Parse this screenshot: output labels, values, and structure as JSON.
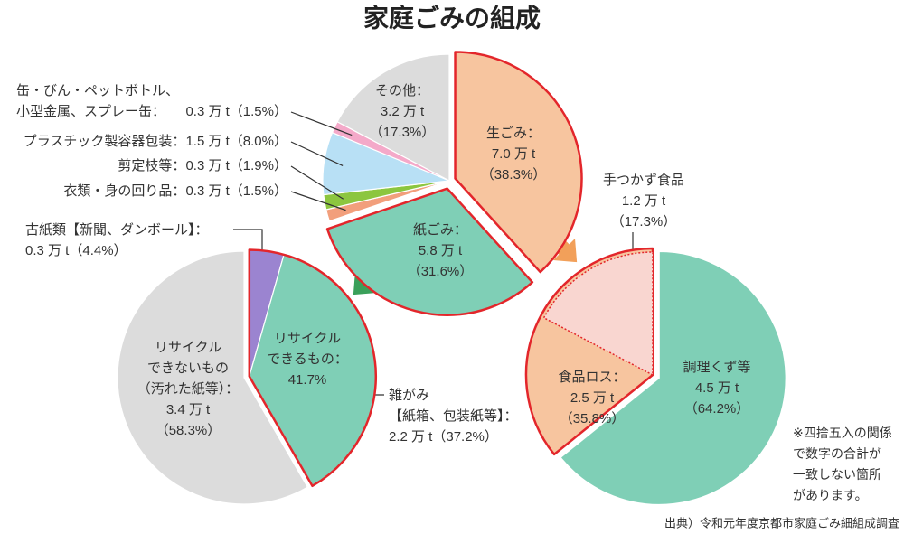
{
  "title": "家庭ごみの組成",
  "note": "※四捨五入の関係\nで数字の合計が\n一致しない箇所\nがあります。",
  "source": "出典）令和元年度京都市家庭ごみ細組成調査",
  "chart_data": [
    {
      "type": "pie",
      "categories": [
        "生ごみ：",
        "紙ごみ：",
        "衣類・身の回り品：",
        "剪定枝等：",
        "プラスチック製容器包装：",
        "缶・びん・ペットボトル、\n小型金属、スプレー缶：",
        "その他："
      ],
      "values": [
        38.3,
        31.6,
        1.5,
        1.9,
        8.0,
        1.5,
        17.3
      ],
      "value_labels": [
        "（38.3%）",
        "（31.6%）",
        "（1.5%）",
        "（1.9%）",
        "（8.0%）",
        "（1.5%）",
        "（17.3%）"
      ],
      "amounts": [
        "7.0 万 t",
        "5.8 万 t",
        "0.3 万 t",
        "0.3 万 t",
        "1.5 万 t",
        "0.3 万 t",
        "3.2 万 t"
      ],
      "colors": [
        "#f7c59f",
        "#7fcfb6",
        "#f29f7c",
        "#8cc63f",
        "#b8e0f5",
        "#f4a9c9",
        "#dcdcdc"
      ]
    },
    {
      "type": "pie",
      "categories": [
        "古紙類【新聞、ダンボール】：",
        "雑がみ\n【紙箱、包装紙等】：",
        "リサイクル\nできないもの\n（汚れた紙等）："
      ],
      "values": [
        4.4,
        37.2,
        58.3
      ],
      "value_labels": [
        "（4.4%）",
        "（37.2%）",
        "（58.3%）"
      ],
      "amounts": [
        "0.3 万 t",
        "2.2 万 t",
        "3.4 万 t"
      ],
      "colors": [
        "#9b84d0",
        "#7fcfb6",
        "#dcdcdc"
      ],
      "group": {
        "name": "リサイクル\nできるもの：",
        "value": 41.7,
        "value_label": "41.7%"
      }
    },
    {
      "type": "pie",
      "categories": [
        "調理くず等",
        "食品ロス："
      ],
      "values": [
        64.2,
        35.8
      ],
      "value_labels": [
        "（64.2%）",
        "（35.8%）"
      ],
      "amounts": [
        "4.5 万 t",
        "2.5 万 t"
      ],
      "colors": [
        "#7fcfb6",
        "#f7c59f"
      ],
      "subset": {
        "name": "手つかず食品",
        "value": 17.3,
        "value_label": "（17.3%）",
        "amount": "1.2 万 t",
        "color": "#f9d6d0"
      }
    }
  ]
}
